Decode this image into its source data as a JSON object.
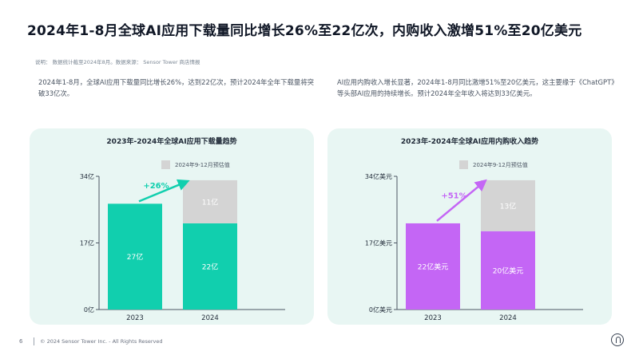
{
  "page": {
    "title": "2024年1-8月全球AI应用下载量同比增长26%至22亿次，内购收入激增51%至20亿美元",
    "note": "说明：  数据统计截至2024年8月。数据来源：  Sensor Tower 商店情报",
    "desc_left": "2024年1-8月，全球AI应用下载量同比增长26%，达到22亿次，预计2024年全年下载量将突破33亿次。",
    "desc_right": "AI应用内购收入增长显著，2024年1-8月同比激增51%至20亿美元，这主要缘于《ChatGPT》等头部AI应用的持续增长。预计2024年全年收入将达到33亿美元。"
  },
  "footer": {
    "page_number": "6",
    "copyright": "© 2024 Sensor Tower Inc. - All Rights Reserved",
    "logo_icon": "sensor-tower-logo-icon"
  },
  "colors": {
    "teal": "#11cfae",
    "purple": "#c466f5",
    "forecast_gray": "#d4d4d4",
    "panel_bg": "#e8f6f3"
  },
  "chart_data": [
    {
      "type": "bar",
      "stacked": true,
      "title": "2023年-2024年全球AI应用下载量趋势",
      "legend": [
        "2024年9-12月预估值"
      ],
      "legend_position": "top",
      "categories": [
        "2023",
        "2024"
      ],
      "series": [
        {
          "values": [
            27,
            22
          ],
          "labels": [
            "27亿",
            "22亿"
          ]
        },
        {
          "name": "2024年9-12月预估值",
          "values": [
            0,
            11
          ],
          "labels": [
            "",
            "11亿"
          ]
        }
      ],
      "ylim": [
        0,
        34
      ],
      "yticks": [
        0,
        17,
        34
      ],
      "ytick_labels": [
        "0亿",
        "17亿",
        "34亿"
      ],
      "growth_annotation": "+26%",
      "color": "#11cfae",
      "grid": false
    },
    {
      "type": "bar",
      "stacked": true,
      "title": "2023年-2024年全球AI应用内购收入趋势",
      "legend": [
        "2024年9-12月预估值"
      ],
      "legend_position": "top",
      "categories": [
        "2023",
        "2024"
      ],
      "series": [
        {
          "values": [
            22,
            20
          ],
          "labels": [
            "22亿美元",
            "20亿美元"
          ]
        },
        {
          "name": "2024年9-12月预估值",
          "values": [
            0,
            13
          ],
          "labels": [
            "",
            "13亿"
          ]
        }
      ],
      "ylim": [
        0,
        34
      ],
      "yticks": [
        0,
        17,
        34
      ],
      "ytick_labels": [
        "0亿美元",
        "17亿美元",
        "34亿美元"
      ],
      "growth_annotation": "+51%",
      "color": "#c466f5",
      "grid": false
    }
  ]
}
